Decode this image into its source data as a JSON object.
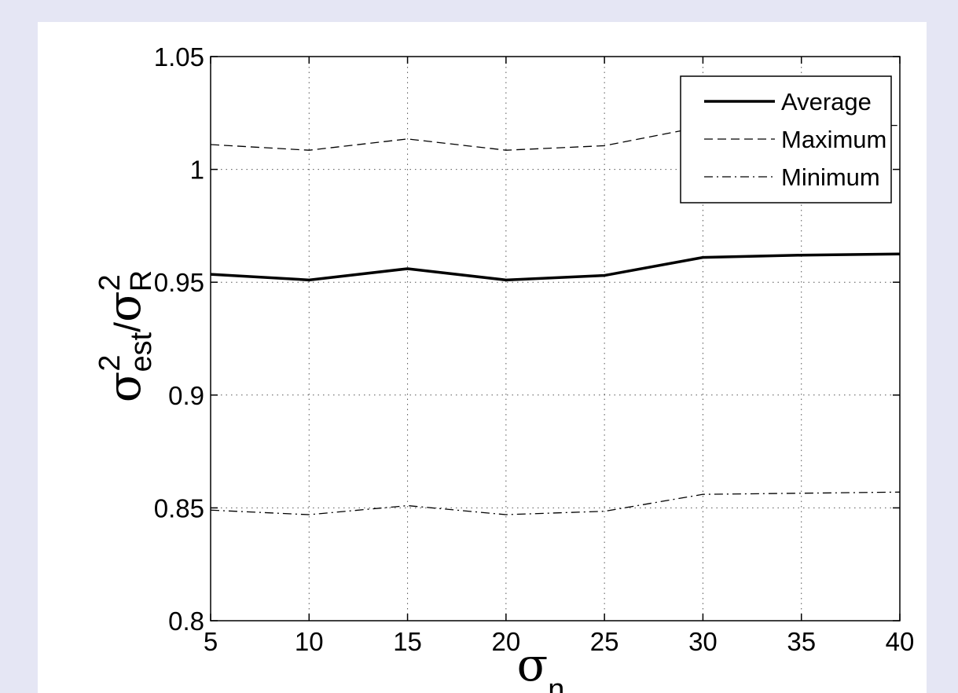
{
  "figure": {
    "background": "#e5e6f4",
    "panel": "#ffffff"
  },
  "chart_data": {
    "type": "line",
    "x": [
      5,
      10,
      15,
      20,
      25,
      30,
      35,
      40
    ],
    "xlim": [
      5,
      40
    ],
    "ylim": [
      0.8,
      1.05
    ],
    "xticks": [
      "5",
      "10",
      "15",
      "20",
      "25",
      "30",
      "35",
      "40"
    ],
    "yticks": [
      "0.8",
      "0.85",
      "0.9",
      "0.95",
      "1",
      "1.05"
    ],
    "xticks_values": [
      5,
      10,
      15,
      20,
      25,
      30,
      35,
      40
    ],
    "yticks_values": [
      0.8,
      0.85,
      0.9,
      0.95,
      1.0,
      1.05
    ],
    "xlabel": {
      "symbol": "σ",
      "sub": "n"
    },
    "ylabel": {
      "num": "σ",
      "num_sup": "2",
      "num_sub": "est",
      "slash": "/",
      "den": "σ",
      "den_sup": "2",
      "den_sub": "R"
    },
    "grid": true,
    "legend_position": "top-right",
    "series": [
      {
        "name": "Average",
        "style": "solid",
        "color": "#000000",
        "values": [
          0.9535,
          0.951,
          0.956,
          0.951,
          0.953,
          0.961,
          0.962,
          0.9625
        ]
      },
      {
        "name": "Maximum",
        "style": "dashed",
        "color": "#000000",
        "values": [
          1.011,
          1.0085,
          1.0135,
          1.0085,
          1.0105,
          1.019,
          1.0195,
          1.0195
        ]
      },
      {
        "name": "Minimum",
        "style": "dashdot",
        "color": "#000000",
        "values": [
          0.849,
          0.847,
          0.851,
          0.847,
          0.8485,
          0.856,
          0.8565,
          0.857
        ]
      }
    ]
  }
}
